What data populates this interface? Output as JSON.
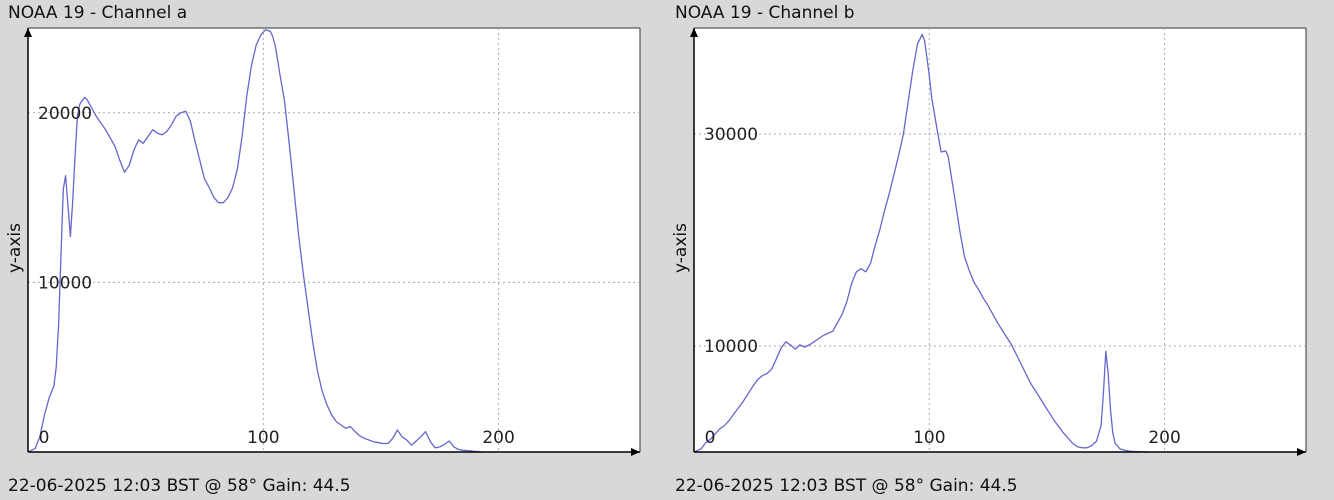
{
  "chart_data": [
    {
      "type": "line",
      "title": "NOAA 19 - Channel a",
      "ylabel": "y-axis",
      "xlabel": "",
      "footer": "22-06-2025 12:03 BST @ 58° Gain: 44.5",
      "xlim": [
        0,
        255
      ],
      "ylim": [
        0,
        25000
      ],
      "xticks": [
        0,
        100,
        200
      ],
      "yticks": [
        10000,
        20000
      ],
      "grid": true,
      "color": "#6666cc",
      "series": [
        {
          "x": [
            0,
            3,
            5,
            7,
            9,
            11,
            12,
            13,
            14,
            15,
            16,
            17,
            18,
            19,
            20,
            21,
            22,
            23,
            24,
            25,
            27,
            29,
            31,
            33,
            35,
            37,
            39,
            41,
            43,
            45,
            47,
            49,
            51,
            53,
            55,
            57,
            59,
            61,
            63,
            65,
            67,
            69,
            71,
            73,
            75,
            77,
            79,
            81,
            83,
            85,
            87,
            89,
            91,
            93,
            95,
            97,
            99,
            101,
            103,
            104,
            105,
            106,
            107,
            109,
            111,
            113,
            115,
            117,
            119,
            121,
            123,
            125,
            127,
            129,
            131,
            133,
            135,
            137,
            139,
            141,
            143,
            145,
            147,
            149,
            151,
            153,
            155,
            157,
            159,
            161,
            163,
            165,
            167,
            169,
            171,
            173,
            175,
            177,
            179,
            181,
            183,
            185,
            187,
            189,
            191,
            193
          ],
          "y": [
            0,
            200,
            900,
            2200,
            3200,
            3900,
            5000,
            7500,
            11500,
            15500,
            16300,
            14500,
            12700,
            14800,
            17500,
            19800,
            20500,
            20700,
            20900,
            20800,
            20300,
            19800,
            19400,
            19000,
            18500,
            18000,
            17200,
            16500,
            16900,
            17800,
            18400,
            18200,
            18600,
            19000,
            18800,
            18700,
            18900,
            19300,
            19800,
            20000,
            20100,
            19500,
            18300,
            17200,
            16100,
            15600,
            15000,
            14700,
            14700,
            15000,
            15600,
            16700,
            18600,
            21000,
            22800,
            24000,
            24600,
            24900,
            24800,
            24500,
            24000,
            23200,
            22300,
            20700,
            18200,
            15500,
            12800,
            10500,
            8500,
            6500,
            4800,
            3600,
            2800,
            2200,
            1800,
            1600,
            1400,
            1500,
            1200,
            950,
            800,
            700,
            600,
            550,
            500,
            500,
            800,
            1300,
            900,
            700,
            400,
            650,
            900,
            1200,
            600,
            250,
            300,
            450,
            650,
            300,
            150,
            100,
            80,
            50,
            30,
            0
          ]
        }
      ]
    },
    {
      "type": "line",
      "title": "NOAA 19 - Channel b",
      "ylabel": "y-axis",
      "xlabel": "",
      "footer": "22-06-2025 12:03 BST @ 58° Gain: 44.5",
      "xlim": [
        0,
        255
      ],
      "ylim": [
        0,
        40000
      ],
      "xticks": [
        0,
        100,
        200
      ],
      "yticks": [
        10000,
        30000
      ],
      "grid": true,
      "color": "#6666cc",
      "series": [
        {
          "x": [
            0,
            3,
            5,
            7,
            9,
            11,
            13,
            15,
            17,
            19,
            21,
            23,
            25,
            27,
            29,
            31,
            33,
            35,
            37,
            39,
            41,
            43,
            45,
            47,
            49,
            51,
            53,
            55,
            57,
            59,
            61,
            63,
            65,
            67,
            69,
            71,
            73,
            75,
            77,
            79,
            81,
            83,
            85,
            87,
            89,
            91,
            93,
            95,
            97,
            98,
            99,
            100,
            101,
            103,
            105,
            107,
            108,
            109,
            111,
            113,
            115,
            117,
            119,
            121,
            123,
            125,
            127,
            129,
            131,
            133,
            135,
            137,
            139,
            141,
            143,
            145,
            147,
            149,
            151,
            153,
            155,
            157,
            159,
            161,
            163,
            165,
            167,
            169,
            171,
            173,
            174,
            175,
            176,
            177,
            178,
            179,
            181,
            183,
            185,
            187,
            189,
            191,
            193
          ],
          "y": [
            0,
            300,
            900,
            1200,
            1700,
            2200,
            2500,
            3000,
            3600,
            4200,
            4800,
            5500,
            6200,
            6800,
            7200,
            7400,
            7800,
            8800,
            9800,
            10400,
            10100,
            9700,
            10100,
            9900,
            10100,
            10400,
            10700,
            11000,
            11200,
            11400,
            12200,
            13000,
            14200,
            15900,
            17000,
            17300,
            17000,
            17800,
            19500,
            21000,
            22800,
            24400,
            26200,
            28000,
            30000,
            33000,
            36000,
            38500,
            39400,
            38800,
            37200,
            35500,
            33500,
            30800,
            28300,
            28400,
            27900,
            26500,
            23700,
            20800,
            18400,
            17100,
            16000,
            15300,
            14500,
            13800,
            13000,
            12200,
            11500,
            10800,
            10100,
            9200,
            8300,
            7400,
            6500,
            5800,
            5100,
            4400,
            3700,
            3000,
            2400,
            1800,
            1300,
            800,
            500,
            400,
            400,
            600,
            1000,
            2500,
            5500,
            9500,
            7500,
            4000,
            1800,
            800,
            300,
            150,
            80,
            50,
            30,
            10,
            0
          ]
        }
      ]
    }
  ]
}
